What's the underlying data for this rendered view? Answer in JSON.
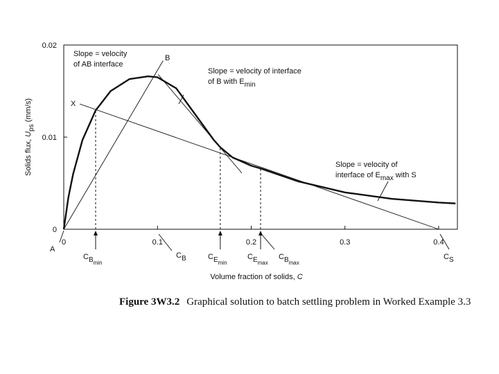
{
  "chart_data": {
    "type": "line",
    "x_label": [
      {
        "t": "Volume fraction of solids, ",
        "lv": 0
      },
      {
        "t": "C",
        "lv": 0,
        "italic": true
      }
    ],
    "y_label": [
      {
        "t": "Solids flux, ",
        "lv": 0
      },
      {
        "t": "U",
        "lv": 0,
        "italic": true
      },
      {
        "t": "ps",
        "lv": 1
      },
      {
        "t": " (mm/s)",
        "lv": 0
      }
    ],
    "caption": [
      {
        "t": "Figure 3W3.2",
        "bold": true
      },
      {
        "t": "Graphical solution to batch settling problem in Worked Example 3.3"
      }
    ],
    "xlim": [
      0,
      0.42
    ],
    "ylim": [
      0,
      0.02
    ],
    "xticks": [
      0,
      0.1,
      0.2,
      0.3,
      0.4
    ],
    "yticks": [
      0,
      0.01,
      0.02
    ],
    "color": "#111111",
    "x": [
      0,
      0.005,
      0.01,
      0.02,
      0.034,
      0.05,
      0.07,
      0.09,
      0.1,
      0.12,
      0.14,
      0.16,
      0.167,
      0.18,
      0.2,
      0.21,
      0.25,
      0.3,
      0.35,
      0.4,
      0.418
    ],
    "values": [
      0,
      0.0035,
      0.006,
      0.0097,
      0.0129,
      0.015,
      0.0163,
      0.0166,
      0.0165,
      0.0153,
      0.0125,
      0.0097,
      0.0089,
      0.0078,
      0.0069,
      0.0066,
      0.0052,
      0.004,
      0.0033,
      0.0029,
      0.0028
    ],
    "construction_lines": [
      {
        "x": [
          0,
          0.106
        ],
        "y": [
          0,
          0.0183
        ]
      },
      {
        "x": [
          0.017,
          0.4
        ],
        "y": [
          0.0136,
          0
        ]
      },
      {
        "x": [
          0.1007,
          0.19
        ],
        "y": [
          0.0168,
          0.0061
        ]
      }
    ],
    "markers": [
      {
        "x": 0.034,
        "y": 0.0129,
        "label": [
          {
            "t": "C",
            "lv": 0
          },
          {
            "t": "B",
            "lv": 1
          },
          {
            "t": "min",
            "lv": 2
          }
        ]
      },
      {
        "x": 0.167,
        "y": 0.0089,
        "label": [
          {
            "t": "C",
            "lv": 0
          },
          {
            "t": "E",
            "lv": 1
          },
          {
            "t": "min",
            "lv": 2
          }
        ]
      },
      {
        "x": 0.21,
        "y": 0.0066,
        "label": [
          {
            "t": "C",
            "lv": 0
          },
          {
            "t": "E",
            "lv": 1
          },
          {
            "t": "max",
            "lv": 2
          }
        ]
      }
    ],
    "annotations": [
      [
        [
          {
            "t": "Slope = velocity",
            "lv": 0
          }
        ],
        [
          {
            "t": "of AB interface",
            "lv": 0
          }
        ]
      ],
      [
        [
          {
            "t": "B",
            "lv": 0
          }
        ]
      ],
      [
        [
          {
            "t": "Slope = velocity of interface",
            "lv": 0
          }
        ],
        [
          {
            "t": "of B with E",
            "lv": 0
          },
          {
            "t": "min",
            "lv": 1
          }
        ]
      ],
      [
        [
          {
            "t": "X",
            "lv": 0
          }
        ]
      ],
      [
        [
          {
            "t": "A",
            "lv": 0
          }
        ]
      ],
      [
        [
          {
            "t": "Slope = velocity of",
            "lv": 0
          }
        ],
        [
          {
            "t": "interface of E",
            "lv": 0
          },
          {
            "t": "max",
            "lv": 1
          },
          {
            "t": " with S",
            "lv": 0
          }
        ]
      ],
      [
        [
          {
            "t": "C",
            "lv": 0
          },
          {
            "t": "S",
            "lv": 1
          }
        ]
      ],
      [
        [
          {
            "t": "C",
            "lv": 0
          },
          {
            "t": "B",
            "lv": 1
          }
        ]
      ],
      [
        [
          {
            "t": "C",
            "lv": 0
          },
          {
            "t": "B",
            "lv": 1
          },
          {
            "t": "max",
            "lv": 2
          }
        ]
      ]
    ]
  }
}
